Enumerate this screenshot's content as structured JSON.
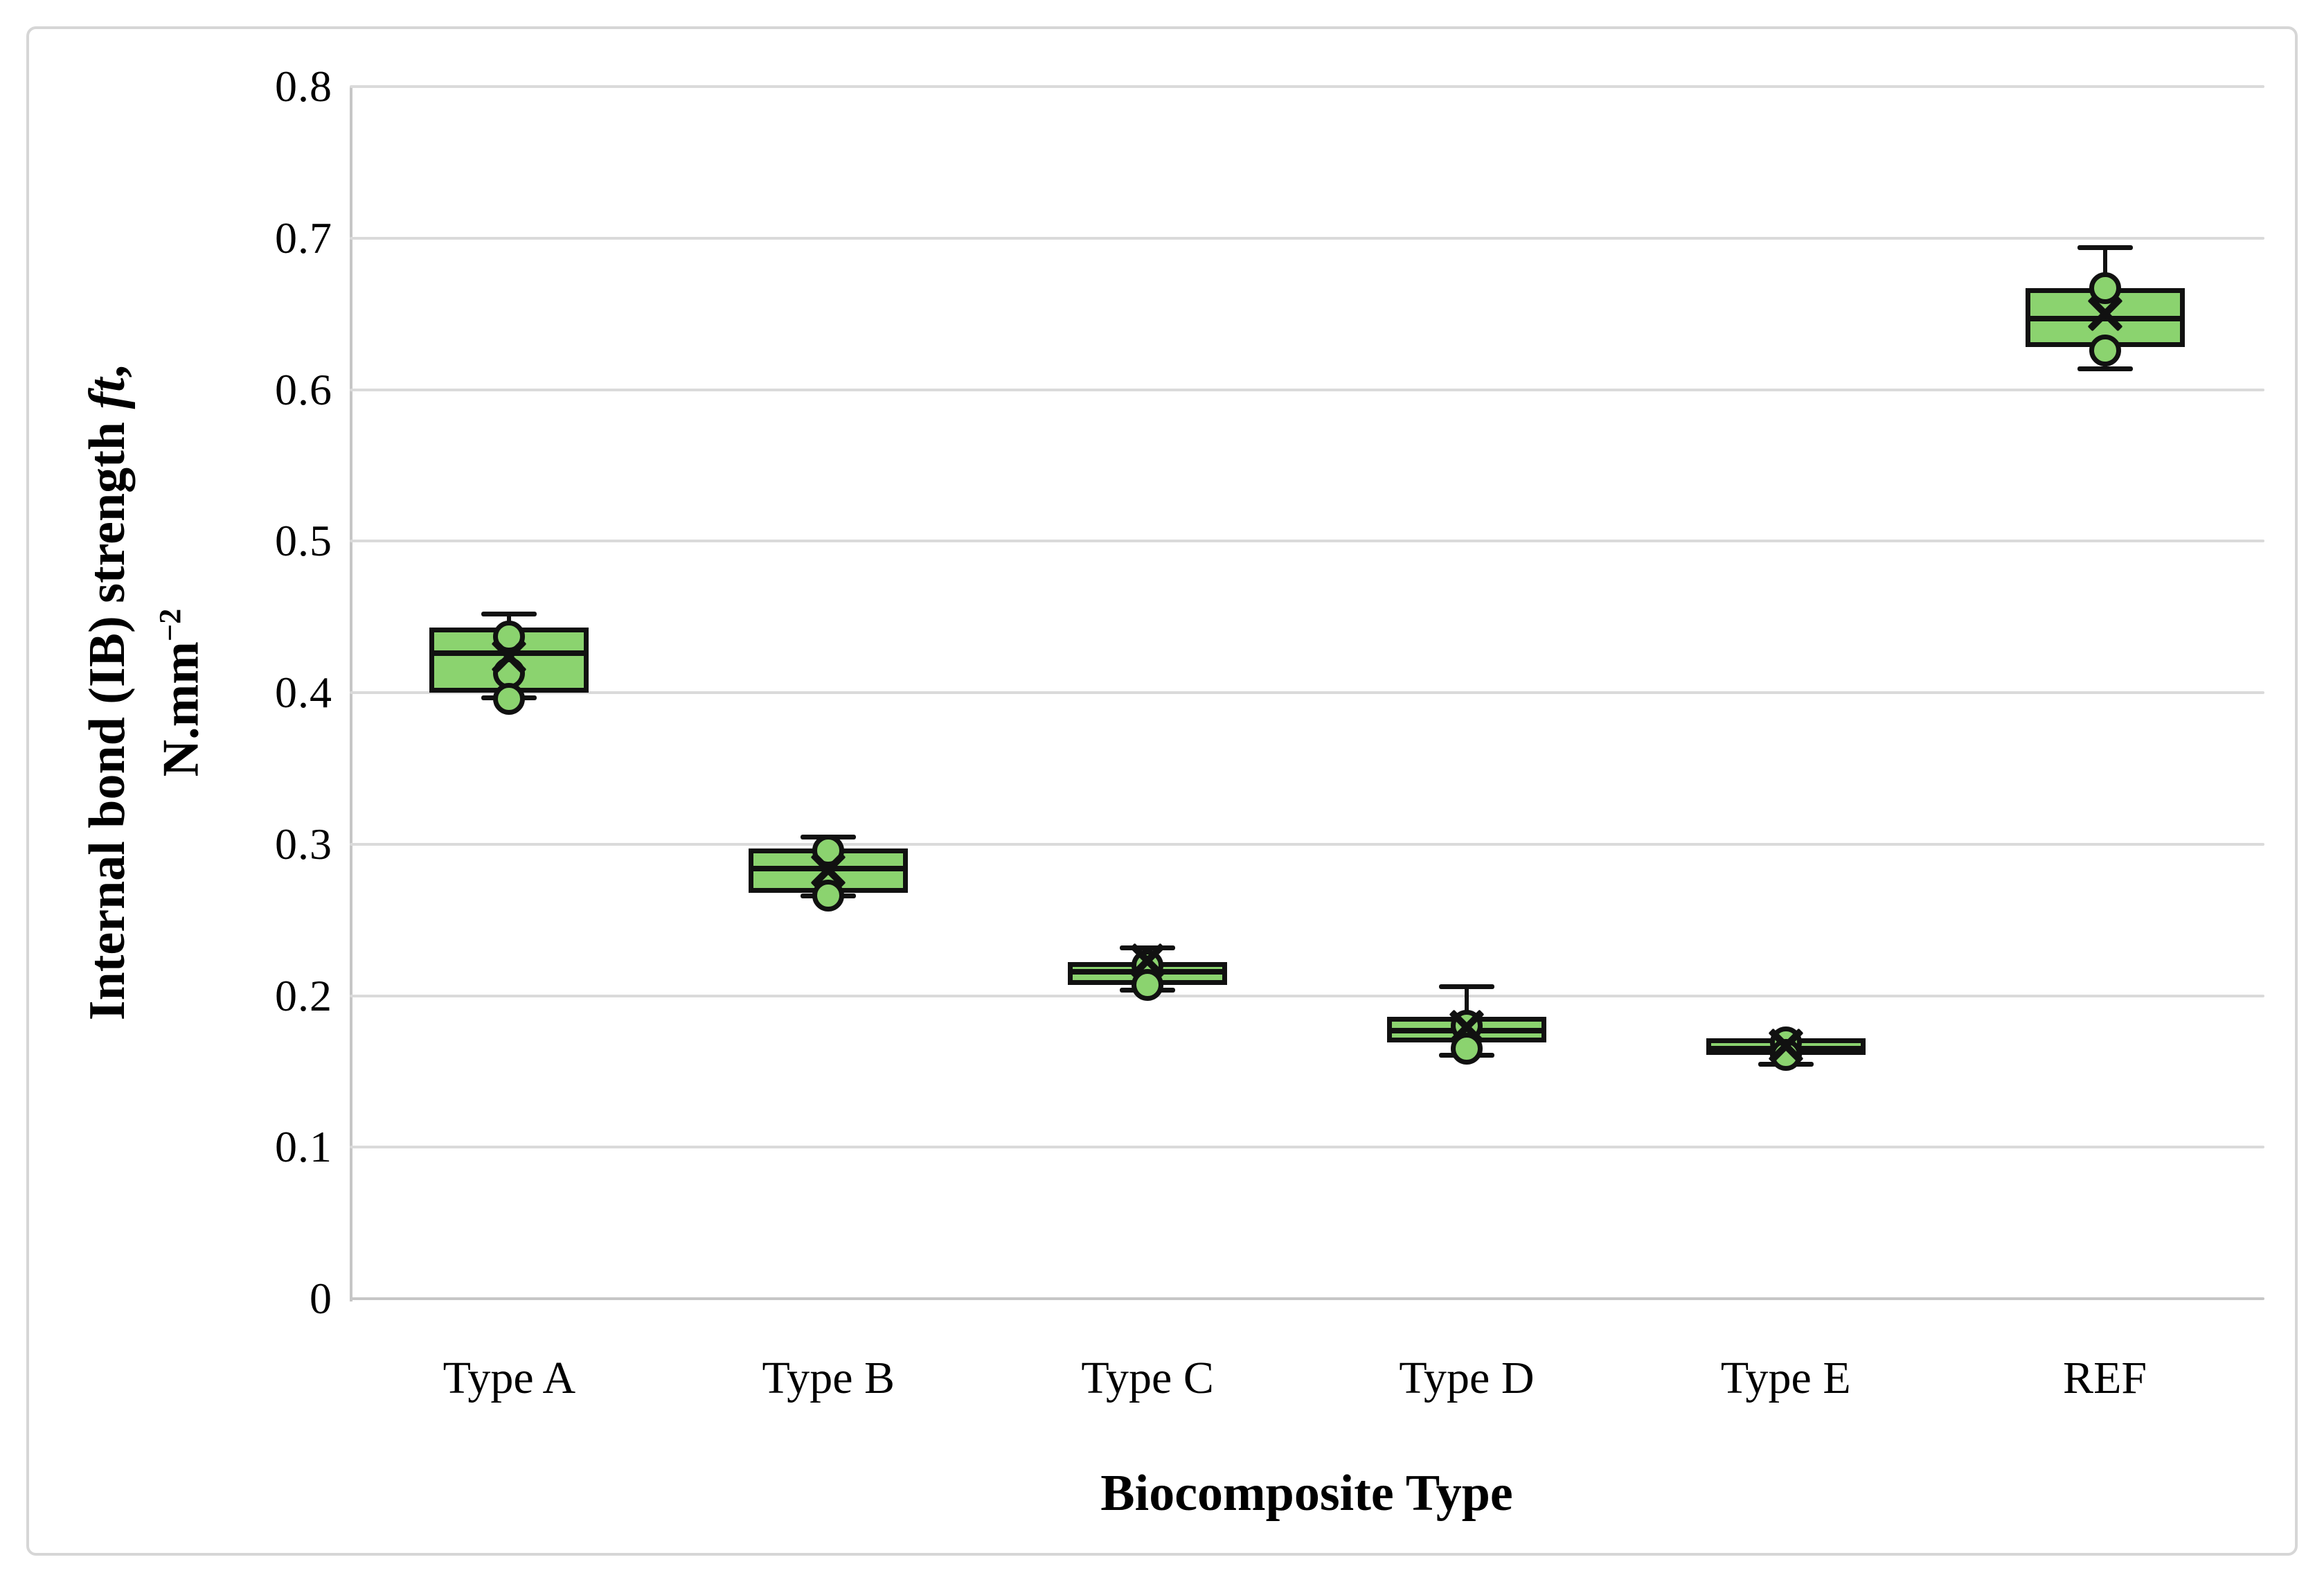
{
  "figure": {
    "background": "#ffffff",
    "border_color": "#d6d6d6"
  },
  "chart_data": {
    "type": "boxplot",
    "title": "",
    "xlabel": "Biocomposite Type",
    "ylabel_text": "Internal bond (IB) strength ft, N.mm⁻²",
    "ylabel": {
      "prefix": "Internal bond (IB) strength ",
      "italic": "ft",
      "suffix": ",",
      "unit_base": "N.mm",
      "unit_sup": "−2"
    },
    "ylim": [
      0,
      0.8
    ],
    "ytick_step": 0.1,
    "yticks": [
      "0.8",
      "0.7",
      "0.6",
      "0.5",
      "0.4",
      "0.3",
      "0.2",
      "0.1",
      "0"
    ],
    "grid": true,
    "legend": "none",
    "categories": [
      "Type A",
      "Type B",
      "Type C",
      "Type D",
      "Type E",
      "REF"
    ],
    "series": [
      {
        "label": "Type A",
        "min": 0.397,
        "q1": 0.4,
        "median": 0.426,
        "q3": 0.443,
        "max": 0.452,
        "mean": 0.424,
        "points": [
          0.437,
          0.413,
          0.396
        ]
      },
      {
        "label": "Type B",
        "min": 0.266,
        "q1": 0.268,
        "median": 0.284,
        "q3": 0.297,
        "max": 0.305,
        "mean": 0.283,
        "points": [
          0.296,
          0.266
        ]
      },
      {
        "label": "Type C",
        "min": 0.204,
        "q1": 0.207,
        "median": 0.216,
        "q3": 0.222,
        "max": 0.232,
        "mean": 0.223,
        "points": [
          0.22,
          0.207
        ]
      },
      {
        "label": "Type D",
        "min": 0.161,
        "q1": 0.169,
        "median": 0.177,
        "q3": 0.186,
        "max": 0.206,
        "mean": 0.179,
        "points": [
          0.18,
          0.165
        ]
      },
      {
        "label": "Type E",
        "min": 0.155,
        "q1": 0.161,
        "median": 0.165,
        "q3": 0.172,
        "max": 0.172,
        "mean": 0.167,
        "points": [
          0.169,
          0.161
        ]
      },
      {
        "label": "REF",
        "min": 0.614,
        "q1": 0.628,
        "median": 0.647,
        "q3": 0.667,
        "max": 0.694,
        "mean": 0.65,
        "points": [
          0.667,
          0.626
        ]
      }
    ],
    "colors": {
      "box_fill": "#8bd36f",
      "box_stroke": "#111111",
      "grid": "#dadada",
      "axis": "#c6c6c6",
      "text": "#000000"
    }
  }
}
